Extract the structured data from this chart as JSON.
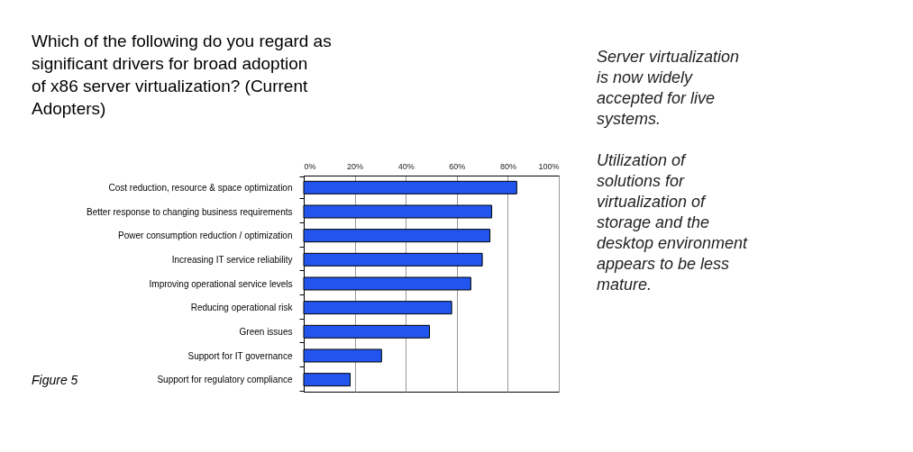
{
  "chart_data": {
    "type": "bar",
    "orientation": "horizontal",
    "title": "Which of the following do you regard as significant drivers for broad adoption of x86 server virtualization? (Current Adopters)",
    "categories": [
      "Cost reduction, resource & space optimization",
      "Better response to changing business requirements",
      "Power consumption reduction / optimization",
      "Increasing IT service reliability",
      "Improving operational service levels",
      "Reducing operational risk",
      "Green issues",
      "Support for IT governance",
      "Support for regulatory compliance"
    ],
    "values": [
      83.5,
      73.7,
      73,
      70,
      65.5,
      58,
      49.3,
      30.5,
      18.2
    ],
    "color": "#2255ee",
    "xlim": [
      0,
      100
    ],
    "xticks": [
      {
        "value": 0,
        "label": "0%"
      },
      {
        "value": 20,
        "label": "20%"
      },
      {
        "value": 40,
        "label": "40%"
      },
      {
        "value": 60,
        "label": "60%"
      },
      {
        "value": 80,
        "label": "80%"
      },
      {
        "value": 100,
        "label": "100%"
      }
    ],
    "grid": "x",
    "annotations": [
      "Figure 5",
      "Server virtualization is now widely accepted for live systems.",
      "Utilization of solutions for virtualization of storage and the desktop environment appears to be less mature."
    ]
  }
}
